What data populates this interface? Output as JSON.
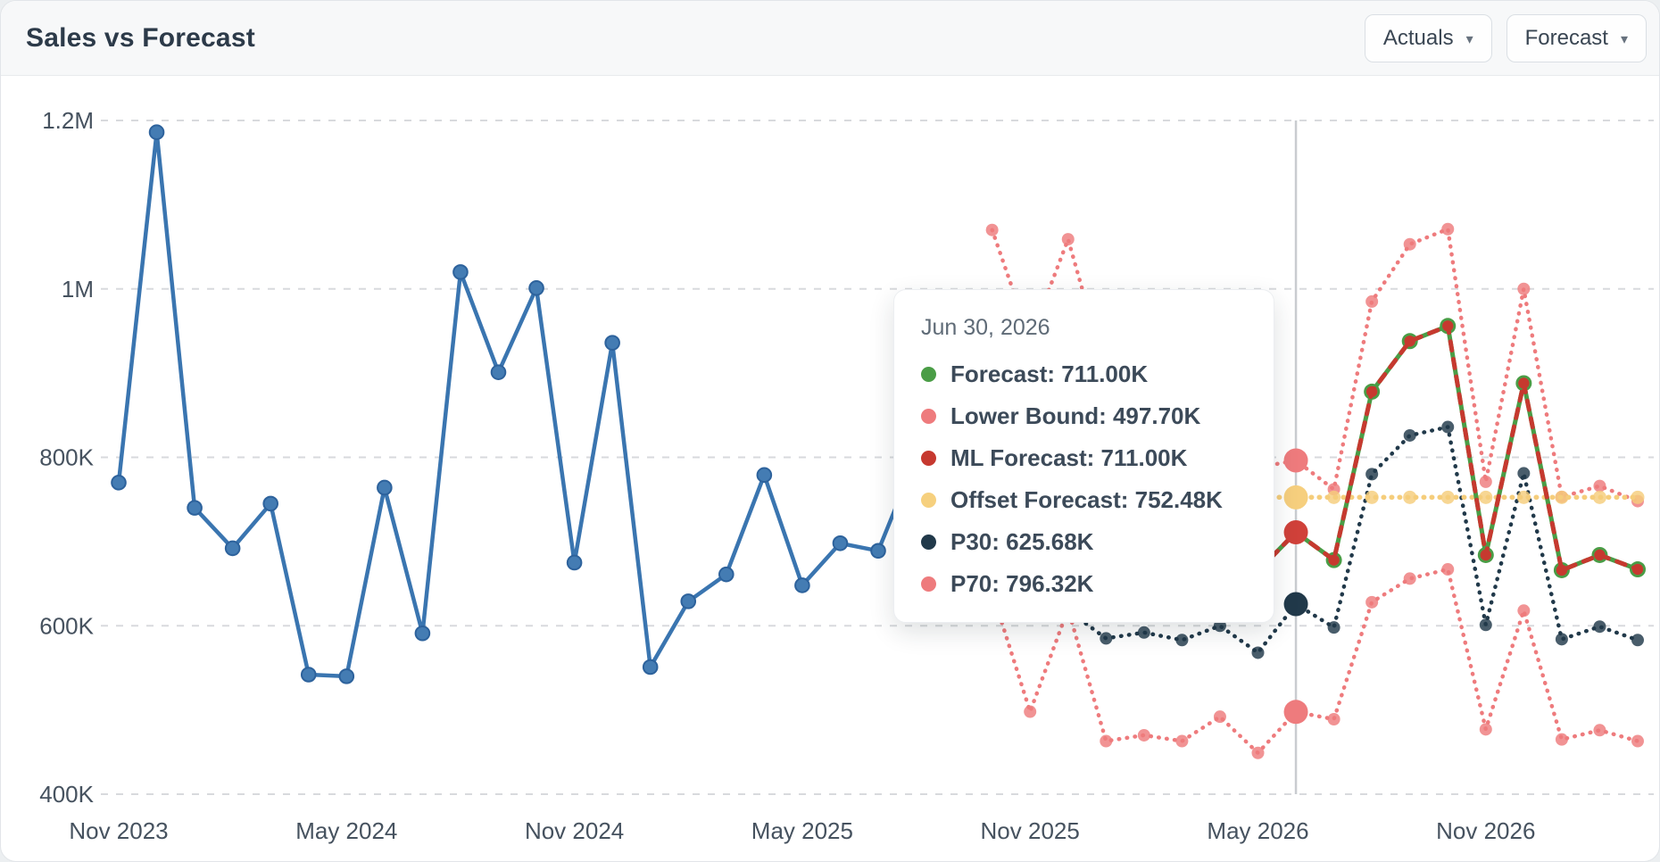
{
  "header": {
    "title": "Sales vs Forecast",
    "actuals_button": "Actuals",
    "forecast_button": "Forecast",
    "caret": "▾"
  },
  "tooltip": {
    "date": "Jun 30, 2026",
    "rows": [
      {
        "name": "Forecast",
        "value": "711.00K",
        "color": "#4a9d46"
      },
      {
        "name": "Lower Bound",
        "value": "497.70K",
        "color": "#ee7b7d"
      },
      {
        "name": "ML Forecast",
        "value": "711.00K",
        "color": "#c6392f"
      },
      {
        "name": "Offset Forecast",
        "value": "752.48K",
        "color": "#f6d07e"
      },
      {
        "name": "P30",
        "value": "625.68K",
        "color": "#21394a"
      },
      {
        "name": "P70",
        "value": "796.32K",
        "color": "#ee7b7d"
      }
    ]
  },
  "chart_data": {
    "type": "line",
    "title": "Sales vs Forecast",
    "x_unit": "month",
    "x_start": "Nov 2023",
    "n_months": 41,
    "ylim_thousands": [
      380,
      1270
    ],
    "grid": true,
    "y_ticks": [
      {
        "value": 1200,
        "label": "1.2M"
      },
      {
        "value": 1000,
        "label": "1M"
      },
      {
        "value": 800,
        "label": "800K"
      },
      {
        "value": 600,
        "label": "600K"
      },
      {
        "value": 400,
        "label": "400K"
      }
    ],
    "x_ticks": [
      {
        "month": 0,
        "label": "Nov 2023"
      },
      {
        "month": 6,
        "label": "May 2024"
      },
      {
        "month": 12,
        "label": "Nov 2024"
      },
      {
        "month": 18,
        "label": "May 2025"
      },
      {
        "month": 24,
        "label": "Nov 2025"
      },
      {
        "month": 30,
        "label": "May 2026"
      },
      {
        "month": 36,
        "label": "Nov 2026"
      }
    ],
    "crosshair_month_index": 31,
    "series": [
      {
        "name": "Lower Bound",
        "color": "#ee7b7d",
        "style": "dotted",
        "start": 23,
        "marker_r": 7,
        "hover_color": "#ee7b7d",
        "values": [
          640,
          498,
          620,
          463,
          470,
          463,
          492,
          449,
          497.7,
          489,
          628,
          656,
          667,
          477,
          618,
          465,
          476,
          463
        ]
      },
      {
        "name": "P70",
        "color": "#ee7b7d",
        "style": "dotted",
        "start": 23,
        "marker_r": 7,
        "hover_color": "#ee7b7d",
        "values": [
          1070,
          940,
          1059,
          900,
          830,
          790,
          810,
          788,
          796.32,
          762,
          985,
          1053,
          1071,
          771,
          1000,
          753,
          766,
          748
        ]
      },
      {
        "name": "P30",
        "color": "#21394a",
        "style": "dotted",
        "start": 24,
        "marker_r": 7,
        "hover_color": "#21394a",
        "values": [
          640,
          618,
          585,
          592,
          583,
          600,
          568,
          625.68,
          598,
          780,
          826,
          836,
          601,
          781,
          584,
          599,
          583
        ]
      },
      {
        "name": "Offset Forecast",
        "color": "#f5cd7b",
        "style": "dotted",
        "start": 24,
        "marker_r": 7.5,
        "hover_color": "#f6cf7e",
        "width": 5.5,
        "values": [
          752.48,
          752.48,
          752.48,
          752.48,
          752.48,
          752.48,
          752.48,
          752.48,
          752.48,
          752.48,
          752.48,
          752.48,
          752.48,
          752.48,
          752.48,
          752.48,
          752.48
        ]
      },
      {
        "name": "Forecast",
        "color": "#4a9d46",
        "style": "solid",
        "start": 24,
        "marker_r": 9,
        "width": 5,
        "values": [
          690,
          660,
          640,
          655,
          670,
          650,
          665,
          711,
          678,
          878,
          938,
          956,
          684,
          888,
          666,
          684,
          667
        ]
      },
      {
        "name": "ML Forecast",
        "color": "#c6392f",
        "style": "dashed",
        "start": 24,
        "marker_r": 6.2,
        "width": 5,
        "hover_color": "#d0413a",
        "values": [
          690,
          660,
          640,
          655,
          670,
          650,
          665,
          711,
          678,
          878,
          938,
          956,
          684,
          888,
          666,
          684,
          667
        ]
      },
      {
        "name": "Actuals",
        "color": "#3a75b0",
        "style": "solid",
        "start": 0,
        "marker_r": 7.8,
        "marker_fill": "#447cb3",
        "marker_stroke": "#2d629c",
        "values": [
          770,
          1186,
          740,
          692,
          745,
          542,
          540,
          764,
          591,
          1020,
          901,
          1001,
          675,
          936,
          551,
          629,
          661,
          779,
          648,
          698,
          689,
          800,
          760,
          820
        ]
      }
    ],
    "colors": {
      "gridline": "#d8dadd",
      "crosshair": "#c9ccd0",
      "axis_label": "#46525f"
    }
  }
}
